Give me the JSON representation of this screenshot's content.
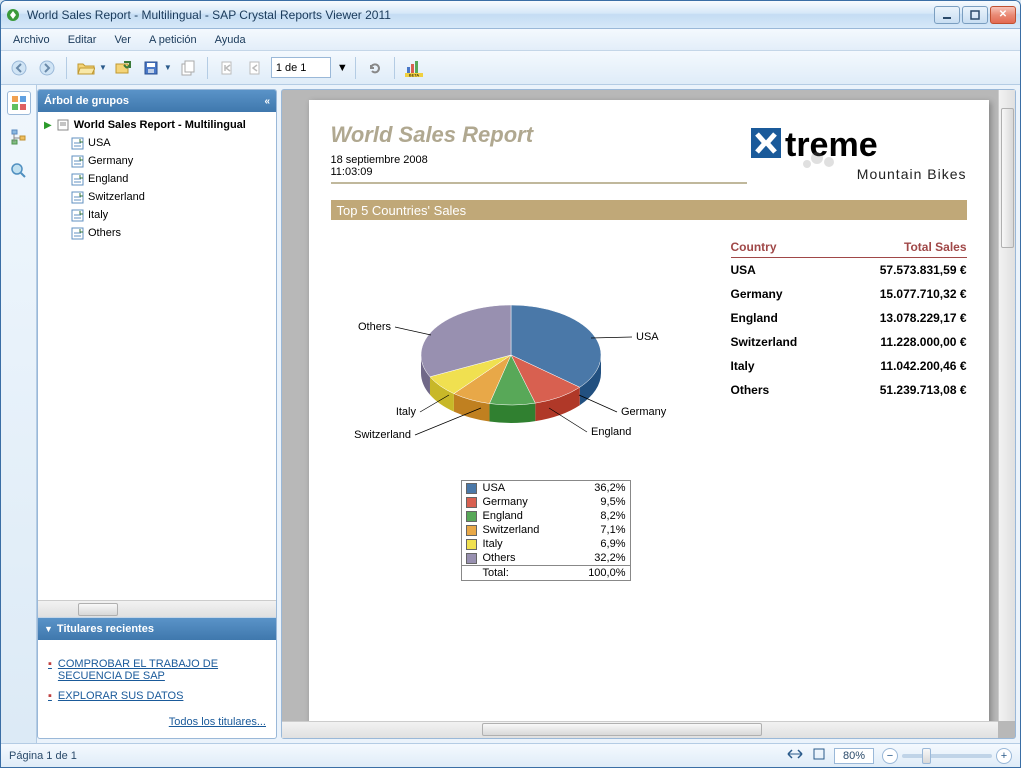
{
  "window": {
    "title": "World Sales Report - Multilingual - SAP Crystal Reports Viewer 2011"
  },
  "menu": {
    "items": [
      "Archivo",
      "Editar",
      "Ver",
      "A petición",
      "Ayuda"
    ]
  },
  "toolbar": {
    "page_indicator": "1 de 1",
    "beta_label": "BETA"
  },
  "sidebar": {
    "group_tree_title": "Árbol de grupos",
    "root_label": "World Sales Report - Multilingual",
    "items": [
      "USA",
      "Germany",
      "England",
      "Switzerland",
      "Italy",
      "Others"
    ],
    "recent_headlines_title": "Titulares recientes",
    "headlines": [
      "COMPROBAR EL TRABAJO DE SECUENCIA DE SAP",
      "EXPLORAR SUS DATOS"
    ],
    "all_headlines": "Todos los titulares..."
  },
  "report": {
    "title": "World Sales Report",
    "date": "18 septiembre 2008",
    "time": "11:03:09",
    "logo_text": "treme",
    "logo_sub": "Mountain Bikes",
    "section_title": "Top 5 Countries' Sales",
    "table": {
      "col_country": "Country",
      "col_total": "Total Sales",
      "rows": [
        {
          "country": "USA",
          "sales": "57.573.831,59 €"
        },
        {
          "country": "Germany",
          "sales": "15.077.710,32 €"
        },
        {
          "country": "England",
          "sales": "13.078.229,17 €"
        },
        {
          "country": "Switzerland",
          "sales": "11.228.000,00 €"
        },
        {
          "country": "Italy",
          "sales": "11.042.200,46 €"
        },
        {
          "country": "Others",
          "sales": "51.239.713,08 €"
        }
      ]
    },
    "chart": {
      "type": "pie",
      "slices": [
        {
          "label": "USA",
          "pct": "36,2%",
          "value": 36.2,
          "color": "#4a78a8"
        },
        {
          "label": "Germany",
          "pct": "9,5%",
          "value": 9.5,
          "color": "#d86050"
        },
        {
          "label": "England",
          "pct": "8,2%",
          "value": 8.2,
          "color": "#58a858"
        },
        {
          "label": "Switzerland",
          "pct": "7,1%",
          "value": 7.1,
          "color": "#e8a848"
        },
        {
          "label": "Italy",
          "pct": "6,9%",
          "value": 6.9,
          "color": "#f0e050"
        },
        {
          "label": "Others",
          "pct": "32,2%",
          "value": 32.2,
          "color": "#9890b0"
        }
      ],
      "total_label": "Total:",
      "total_pct": "100,0%",
      "tilt": 0.5,
      "background": "#ffffff"
    }
  },
  "statusbar": {
    "page": "Página 1 de 1",
    "zoom": "80%"
  }
}
